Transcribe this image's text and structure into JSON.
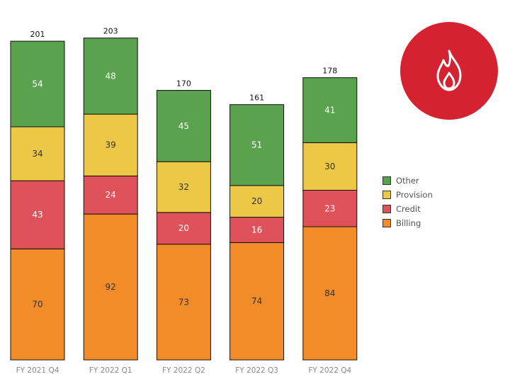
{
  "chart_data": {
    "type": "bar",
    "stacked": true,
    "categories": [
      "FY 2021 Q4",
      "FY 2022 Q1",
      "FY 2022 Q2",
      "FY 2022 Q3",
      "FY 2022 Q4"
    ],
    "series": [
      {
        "name": "Billing",
        "color": "#f28c28",
        "label_color": "#333333",
        "values": [
          70,
          92,
          73,
          74,
          84
        ]
      },
      {
        "name": "Credit",
        "color": "#e05259",
        "label_color": "#ffffff",
        "values": [
          43,
          24,
          20,
          16,
          23
        ]
      },
      {
        "name": "Provision",
        "color": "#ecc846",
        "label_color": "#333333",
        "values": [
          34,
          39,
          32,
          20,
          30
        ]
      },
      {
        "name": "Other",
        "color": "#5aa24d",
        "label_color": "#ffffff",
        "values": [
          54,
          48,
          45,
          51,
          41
        ]
      }
    ],
    "totals": [
      201,
      203,
      170,
      161,
      178
    ],
    "legend": {
      "position": "right",
      "order": [
        "Other",
        "Provision",
        "Credit",
        "Billing"
      ]
    },
    "ylim": [
      0,
      210
    ],
    "grid": false
  },
  "badge": {
    "icon": "flame-icon",
    "color": "#d42231"
  }
}
